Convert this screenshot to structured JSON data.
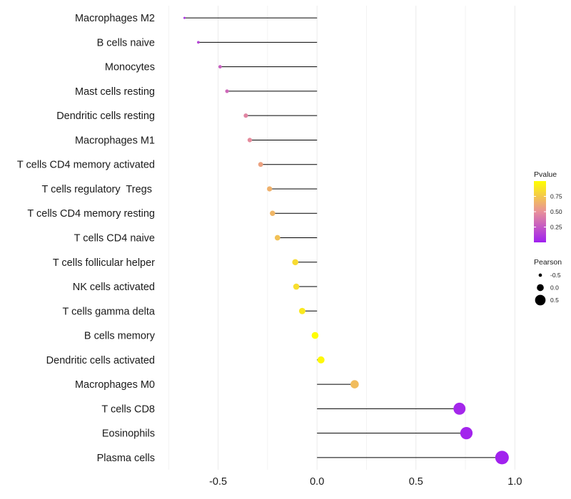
{
  "chart_data": {
    "type": "lollipop",
    "title": "",
    "xlabel": "",
    "ylabel": "",
    "xlim": [
      -0.78,
      1.06
    ],
    "x_ticks": [
      -0.5,
      0.0,
      0.5,
      1.0
    ],
    "x_tick_labels": [
      "-0.5",
      "0.0",
      "0.5",
      "1.0"
    ],
    "grid": true,
    "points": [
      {
        "label": "Macrophages M2",
        "x": -0.67,
        "p": 0.08
      },
      {
        "label": "B cells naive",
        "x": -0.6,
        "p": 0.15
      },
      {
        "label": "Monocytes",
        "x": -0.49,
        "p": 0.28
      },
      {
        "label": "Mast cells resting",
        "x": -0.455,
        "p": 0.32
      },
      {
        "label": "Dendritic cells resting",
        "x": -0.36,
        "p": 0.45
      },
      {
        "label": "Macrophages M1",
        "x": -0.34,
        "p": 0.48
      },
      {
        "label": "T cells CD4 memory activated",
        "x": -0.285,
        "p": 0.58
      },
      {
        "label": "T cells regulatory  Tregs ",
        "x": -0.24,
        "p": 0.65
      },
      {
        "label": "T cells CD4 memory resting",
        "x": -0.225,
        "p": 0.67
      },
      {
        "label": "T cells CD4 naive",
        "x": -0.2,
        "p": 0.72
      },
      {
        "label": "T cells follicular helper",
        "x": -0.11,
        "p": 0.84
      },
      {
        "label": "NK cells activated",
        "x": -0.105,
        "p": 0.85
      },
      {
        "label": "T cells gamma delta",
        "x": -0.075,
        "p": 0.9
      },
      {
        "label": "B cells memory",
        "x": -0.01,
        "p": 0.99
      },
      {
        "label": "Dendritic cells activated",
        "x": 0.02,
        "p": 0.97
      },
      {
        "label": "Macrophages M0",
        "x": 0.19,
        "p": 0.7
      },
      {
        "label": "T cells CD8",
        "x": 0.72,
        "p": 0.03
      },
      {
        "label": "Eosinophils",
        "x": 0.755,
        "p": 0.02
      },
      {
        "label": "Plasma cells",
        "x": 0.935,
        "p": 0.01
      }
    ],
    "legend": {
      "color": {
        "title": "Pvalue",
        "ticks": [
          0.75,
          0.5,
          0.25
        ],
        "tick_labels": [
          "0.75",
          "0.50",
          "0.25"
        ],
        "range": [
          0.0,
          1.0
        ],
        "low_color": "#a020f0",
        "mid_color": "#e8909a",
        "high_color": "#ffff00"
      },
      "size": {
        "title": "Pearson",
        "values": [
          -0.5,
          0.0,
          0.5
        ],
        "value_labels": [
          "-0.5",
          "0.0",
          "0.5"
        ]
      },
      "placement": "right"
    },
    "colors": {
      "segment": "#000000",
      "grid": "#ebebeb",
      "text": "#1a1a1a"
    }
  }
}
